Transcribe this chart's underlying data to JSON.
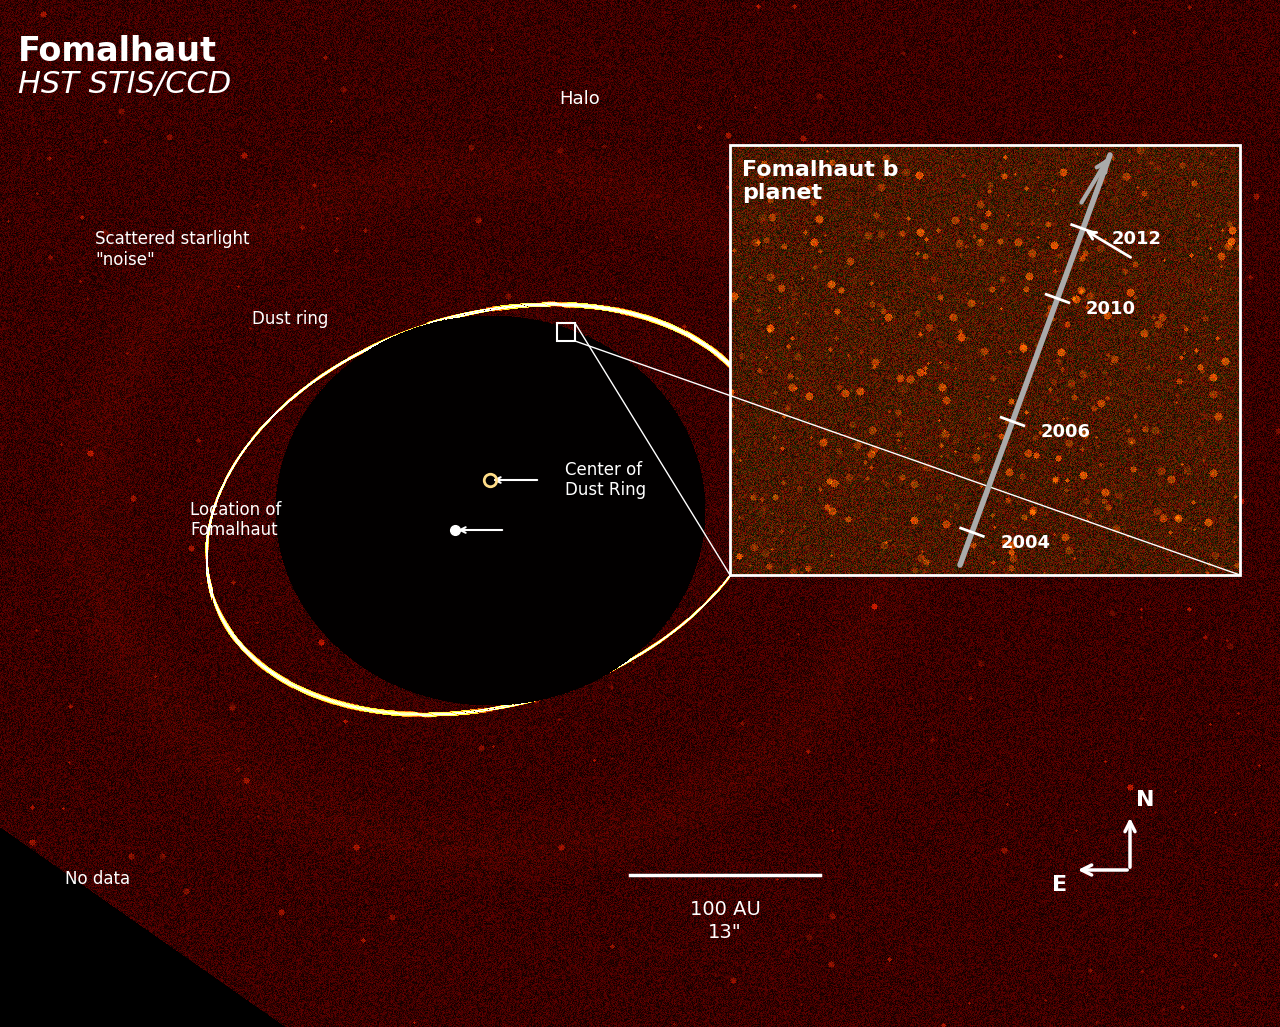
{
  "title": "Fomalhaut",
  "subtitle": "HST STIS/CCD",
  "figsize": [
    12.8,
    10.27
  ],
  "dpi": 100,
  "bg_color": "#000000",
  "labels": {
    "halo": "Halo",
    "dust_ring": "Dust ring",
    "scattered": "Scattered starlight\n\"noise\"",
    "center_dust": "Center of\nDust Ring",
    "location_fomalhaut": "Location of\nFomalhaut",
    "no_data": "No data",
    "scale_100au": "100 AU",
    "scale_arcsec": "13\"",
    "compass_N": "N",
    "compass_E": "E",
    "inset_title": "Fomalhaut b\nplanet",
    "year_2004": "2004",
    "year_2006": "2006",
    "year_2010": "2010",
    "year_2012": "2012"
  }
}
